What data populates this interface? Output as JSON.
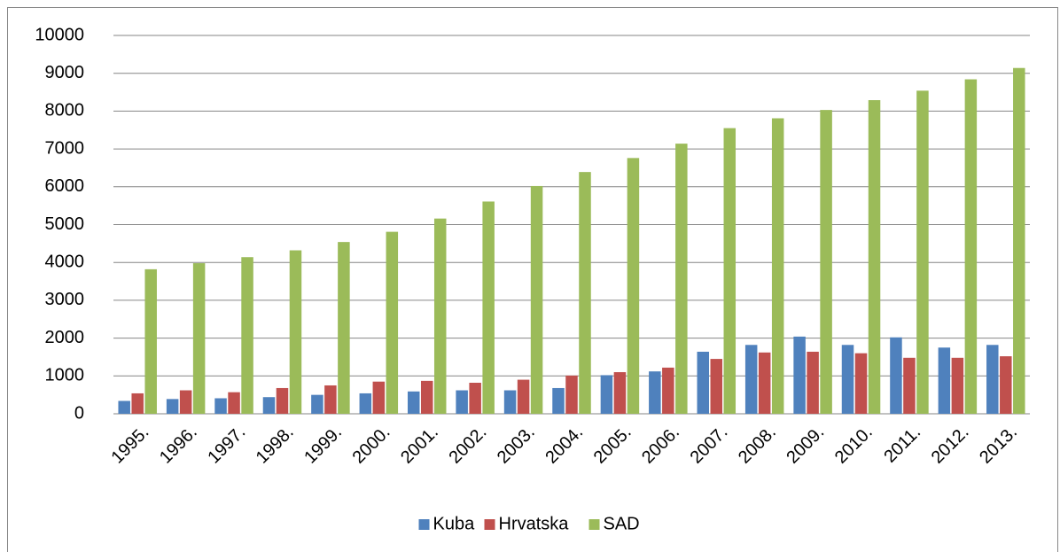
{
  "chart_data": {
    "type": "bar",
    "categories": [
      "1995.",
      "1996.",
      "1997.",
      "1998.",
      "1999.",
      "2000.",
      "2001.",
      "2002.",
      "2003.",
      "2004.",
      "2005.",
      "2006.",
      "2007.",
      "2008.",
      "2009.",
      "2010.",
      "2011.",
      "2012.",
      "2013."
    ],
    "series": [
      {
        "name": "Kuba",
        "color": "#4f81bd",
        "values": [
          340,
          390,
          410,
          440,
          500,
          540,
          590,
          620,
          620,
          680,
          1020,
          1120,
          1640,
          1820,
          2040,
          1820,
          2020,
          1750,
          1820
        ]
      },
      {
        "name": "Hrvatska",
        "color": "#c0504d",
        "values": [
          540,
          620,
          570,
          680,
          750,
          850,
          870,
          820,
          900,
          1010,
          1100,
          1220,
          1450,
          1620,
          1640,
          1600,
          1480,
          1480,
          1520
        ]
      },
      {
        "name": "SAD",
        "color": "#9bbb59",
        "values": [
          3820,
          3980,
          4140,
          4320,
          4540,
          4810,
          5160,
          5610,
          6020,
          6390,
          6760,
          7140,
          7550,
          7810,
          8030,
          8290,
          8540,
          8840,
          9140
        ]
      }
    ],
    "ylim": [
      0,
      10000
    ],
    "yticks": [
      0,
      1000,
      2000,
      3000,
      4000,
      5000,
      6000,
      7000,
      8000,
      9000,
      10000
    ],
    "grid": true,
    "legend": "bottom"
  }
}
